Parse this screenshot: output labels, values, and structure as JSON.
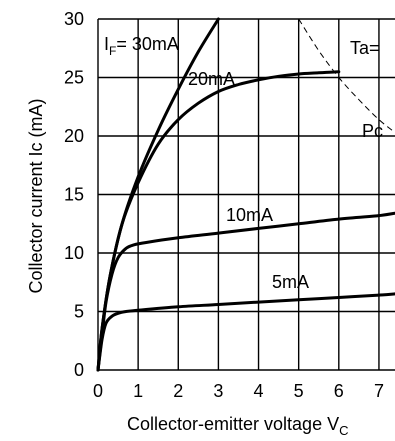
{
  "chart_data": {
    "type": "line",
    "ylabel": "Collector current Ic (mA)",
    "xlabel_main": "Collector-emitter voltage V",
    "xlabel_sub": "C",
    "xlim": [
      0,
      7.4
    ],
    "ylim": [
      0,
      30
    ],
    "x_ticks": [
      "0",
      "1",
      "2",
      "3",
      "4",
      "5",
      "6",
      "7"
    ],
    "y_ticks": [
      "0",
      "5",
      "10",
      "15",
      "20",
      "25",
      "30"
    ],
    "grid": true,
    "annotations": {
      "ta": "Ta=",
      "pc": "Pc"
    },
    "series": [
      {
        "name": "IF= 30mA",
        "label_main": "I",
        "label_sub": "F",
        "label_rest": "= 30mA",
        "x": [
          0,
          0.1,
          0.3,
          0.6,
          1.0,
          1.5,
          2.0,
          2.5,
          3.0
        ],
        "y": [
          0,
          3.5,
          8.0,
          12.5,
          16.5,
          20.5,
          24.0,
          27.2,
          30.0
        ]
      },
      {
        "name": "20mA",
        "label_main": "20mA",
        "x": [
          0,
          0.1,
          0.3,
          0.6,
          1.0,
          1.5,
          2.0,
          2.5,
          3.0,
          3.5,
          4.0,
          4.5,
          5.0,
          5.5,
          6.0
        ],
        "y": [
          0,
          3.5,
          8.0,
          12.5,
          16.0,
          19.3,
          21.4,
          22.8,
          23.8,
          24.4,
          24.8,
          25.1,
          25.3,
          25.4,
          25.5
        ]
      },
      {
        "name": "10mA",
        "label_main": "10mA",
        "x": [
          0,
          0.1,
          0.2,
          0.35,
          0.5,
          0.7,
          0.9,
          1.2,
          2.0,
          3.0,
          4.0,
          5.0,
          6.0,
          7.0,
          7.4
        ],
        "y": [
          0,
          3.0,
          5.8,
          8.2,
          9.6,
          10.4,
          10.7,
          10.9,
          11.3,
          11.7,
          12.1,
          12.5,
          12.9,
          13.2,
          13.4
        ]
      },
      {
        "name": "5mA",
        "label_main": "5mA",
        "x": [
          0,
          0.1,
          0.2,
          0.35,
          0.5,
          0.7,
          1.0,
          2.0,
          3.0,
          4.0,
          5.0,
          6.0,
          7.0,
          7.4
        ],
        "y": [
          0,
          2.6,
          4.0,
          4.6,
          4.85,
          5.0,
          5.1,
          5.4,
          5.6,
          5.8,
          6.0,
          6.2,
          6.4,
          6.5
        ]
      }
    ],
    "power_limit": {
      "x": [
        5.0,
        5.5,
        6.0,
        6.5,
        7.0,
        7.4
      ],
      "y": [
        30.0,
        27.3,
        25.0,
        23.1,
        21.4,
        20.3
      ]
    }
  }
}
